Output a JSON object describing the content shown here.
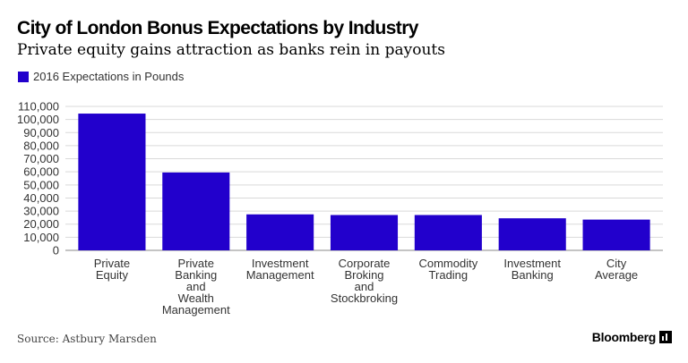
{
  "header": {
    "title": "City of London Bonus Expectations by Industry",
    "subtitle": "Private equity gains attraction as banks rein in payouts"
  },
  "legend": {
    "label": "2016 Expectations in Pounds",
    "color": "#2200cc"
  },
  "footer": {
    "source": "Source: Astbury Marsden",
    "brand": "Bloomberg"
  },
  "chart_data": {
    "type": "bar",
    "title": "City of London Bonus Expectations by Industry",
    "subtitle": "Private equity gains attraction as banks rein in payouts",
    "xlabel": "",
    "ylabel": "",
    "series": [
      {
        "name": "2016 Expectations in Pounds",
        "color": "#2200cc",
        "values": [
          104500,
          59500,
          27500,
          27000,
          27000,
          24500,
          23500
        ]
      }
    ],
    "categories": [
      "Private Equity",
      "Private Banking and Wealth Management",
      "Investment Management",
      "Corporate Broking and Stockbroking",
      "Commodity Trading",
      "Investment Banking",
      "City Average"
    ],
    "category_label_lines": [
      [
        "Private",
        "Equity"
      ],
      [
        "Private",
        "Banking",
        "and",
        "Wealth",
        "Management"
      ],
      [
        "Investment",
        "Management"
      ],
      [
        "Corporate",
        "Broking",
        "and",
        "Stockbroking"
      ],
      [
        "Commodity",
        "Trading"
      ],
      [
        "Investment",
        "Banking"
      ],
      [
        "City",
        "Average"
      ]
    ],
    "yticks": [
      0,
      10000,
      20000,
      30000,
      40000,
      50000,
      60000,
      70000,
      80000,
      90000,
      100000,
      110000
    ],
    "ytick_labels": [
      "0",
      "10,000",
      "20,000",
      "30,000",
      "40,000",
      "50,000",
      "60,000",
      "70,000",
      "80,000",
      "90,000",
      "100,000",
      "110,000"
    ],
    "ylim": [
      0,
      110000
    ],
    "grid": true,
    "legend_position": "top-left"
  }
}
